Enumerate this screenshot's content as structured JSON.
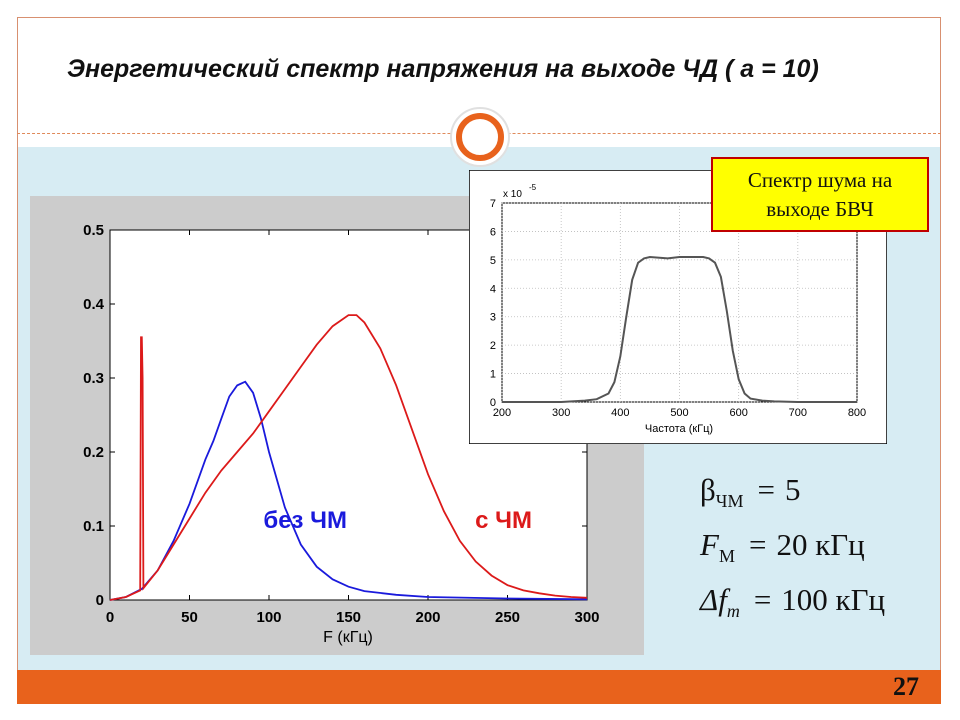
{
  "slide": {
    "title": "Энергетический спектр напряжения на выходе ЧД ( a = 10)",
    "page_number": "27",
    "note": [
      "Спектр шума на",
      "выходе БВЧ"
    ]
  },
  "params": [
    {
      "symbol": "β",
      "sub": "ЧМ",
      "eq": "=",
      "value": "5"
    },
    {
      "symbol": "F",
      "sub": "М",
      "eq": "=",
      "value": "20 кГц"
    },
    {
      "symbol": "Δf",
      "sub": "m",
      "eq": "=",
      "value": "100 кГц"
    }
  ],
  "colors": {
    "blue_series": "#1a1adc",
    "red_series": "#dc1a1a",
    "accent": "#e8621c",
    "band": "#d7ecf3"
  },
  "chart_data": [
    {
      "type": "line",
      "xlabel": "F (кГц)",
      "ylabel": "",
      "xlim": [
        0,
        300
      ],
      "ylim": [
        0,
        0.5
      ],
      "xticks": [
        0,
        50,
        100,
        150,
        200,
        250,
        300
      ],
      "yticks": [
        0,
        0.1,
        0.2,
        0.3,
        0.4,
        0.5
      ],
      "xtick_labels": [
        "0",
        "50",
        "100",
        "150",
        "200",
        "250",
        "300"
      ],
      "ytick_labels": [
        "0",
        "0.1",
        "0.2",
        "0.3",
        "0.4",
        "0.5"
      ],
      "grid": false,
      "series": [
        {
          "name": "без ЧМ",
          "color": "#1a1adc",
          "x": [
            0,
            10,
            20,
            30,
            40,
            50,
            60,
            65,
            70,
            75,
            80,
            85,
            90,
            95,
            100,
            110,
            120,
            130,
            140,
            150,
            160,
            180,
            200,
            250,
            300
          ],
          "y": [
            0,
            0.004,
            0.015,
            0.04,
            0.08,
            0.13,
            0.19,
            0.215,
            0.245,
            0.275,
            0.29,
            0.295,
            0.28,
            0.245,
            0.2,
            0.125,
            0.075,
            0.045,
            0.028,
            0.018,
            0.012,
            0.007,
            0.004,
            0.002,
            0.001
          ]
        },
        {
          "name": "с ЧМ",
          "color": "#dc1a1a",
          "x": [
            0,
            10,
            19,
            19.5,
            20,
            20.5,
            21,
            30,
            40,
            50,
            60,
            70,
            80,
            90,
            100,
            110,
            120,
            130,
            140,
            150,
            155,
            160,
            170,
            180,
            190,
            200,
            210,
            220,
            230,
            240,
            250,
            260,
            270,
            280,
            290,
            300
          ],
          "y": [
            0,
            0.004,
            0.013,
            0.355,
            0.355,
            0.3,
            0.016,
            0.04,
            0.075,
            0.11,
            0.145,
            0.175,
            0.2,
            0.225,
            0.255,
            0.285,
            0.315,
            0.345,
            0.37,
            0.385,
            0.385,
            0.375,
            0.34,
            0.29,
            0.23,
            0.17,
            0.12,
            0.08,
            0.052,
            0.033,
            0.02,
            0.013,
            0.009,
            0.006,
            0.004,
            0.003
          ]
        }
      ],
      "annotations": [
        {
          "text": "без ЧМ",
          "color": "#1a1adc"
        },
        {
          "text": "с ЧМ",
          "color": "#dc1a1a"
        }
      ]
    },
    {
      "type": "line",
      "xlabel": "Частота (кГц)",
      "ylabel": "",
      "exponent_label": "x 10",
      "exponent": "-5",
      "xlim": [
        200,
        800
      ],
      "ylim": [
        0,
        7
      ],
      "xticks": [
        200,
        300,
        400,
        500,
        600,
        700,
        800
      ],
      "yticks": [
        0,
        1,
        2,
        3,
        4,
        5,
        6,
        7
      ],
      "xtick_labels": [
        "200",
        "300",
        "400",
        "500",
        "600",
        "700",
        "800"
      ],
      "ytick_labels": [
        "0",
        "1",
        "2",
        "3",
        "4",
        "5",
        "6",
        "7"
      ],
      "grid": true,
      "series": [
        {
          "color": "#555555",
          "x": [
            200,
            300,
            340,
            360,
            380,
            390,
            400,
            410,
            420,
            430,
            440,
            450,
            480,
            500,
            540,
            550,
            560,
            570,
            580,
            590,
            600,
            610,
            620,
            640,
            660,
            700,
            800
          ],
          "y": [
            0,
            0,
            0.05,
            0.1,
            0.3,
            0.7,
            1.6,
            3.0,
            4.3,
            4.9,
            5.05,
            5.1,
            5.05,
            5.1,
            5.1,
            5.05,
            4.9,
            4.4,
            3.2,
            1.8,
            0.8,
            0.3,
            0.12,
            0.05,
            0.02,
            0,
            0
          ]
        }
      ]
    }
  ]
}
